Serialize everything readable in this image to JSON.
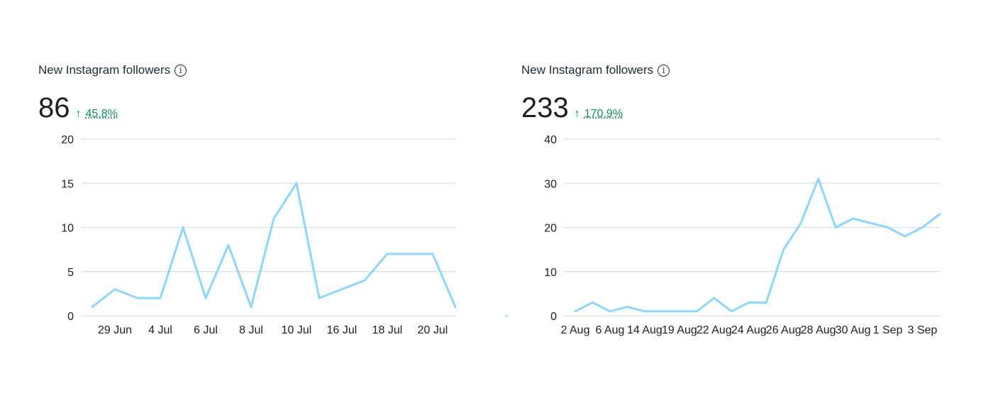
{
  "chart_data": [
    {
      "type": "line",
      "title": "New Instagram followers",
      "total": "86",
      "change": "45.8%",
      "change_direction": "up",
      "ylim": [
        0,
        20
      ],
      "yticks": [
        "0",
        "5",
        "10",
        "15",
        "20"
      ],
      "ytick_values": [
        0,
        5,
        10,
        15,
        20
      ],
      "values": [
        1,
        3,
        2,
        2,
        10,
        2,
        8,
        1,
        11,
        15,
        2,
        3,
        4,
        7,
        7,
        7,
        1
      ],
      "xtick_labels": [
        {
          "i": 1,
          "label": "29 Jun"
        },
        {
          "i": 3,
          "label": "4 Jul"
        },
        {
          "i": 5,
          "label": "6 Jul"
        },
        {
          "i": 7,
          "label": "8 Jul"
        },
        {
          "i": 9,
          "label": "10 Jul"
        },
        {
          "i": 11,
          "label": "16 Jul"
        },
        {
          "i": 13,
          "label": "18 Jul"
        },
        {
          "i": 15,
          "label": "20 Jul"
        }
      ],
      "color": "#8fd6ff",
      "grid": true
    },
    {
      "type": "line",
      "title": "New Instagram followers",
      "total": "233",
      "change": "170.9%",
      "change_direction": "up",
      "ylim": [
        0,
        40
      ],
      "yticks": [
        "0",
        "10",
        "20",
        "30",
        "40"
      ],
      "ytick_values": [
        0,
        10,
        20,
        30,
        40
      ],
      "values": [
        1,
        3,
        1,
        2,
        1,
        1,
        1,
        1,
        4,
        1,
        3,
        3,
        15,
        21,
        31,
        20,
        22,
        21,
        20,
        18,
        20,
        23
      ],
      "xtick_labels": [
        {
          "i": 0,
          "label": "2 Aug"
        },
        {
          "i": 2,
          "label": "6 Aug"
        },
        {
          "i": 4,
          "label": "14 Aug"
        },
        {
          "i": 6,
          "label": "19 Aug"
        },
        {
          "i": 8,
          "label": "22 Aug"
        },
        {
          "i": 10,
          "label": "24 Aug"
        },
        {
          "i": 12,
          "label": "26 Aug"
        },
        {
          "i": 14,
          "label": "28 Aug"
        },
        {
          "i": 16,
          "label": "30 Aug"
        },
        {
          "i": 18,
          "label": "1 Sep"
        },
        {
          "i": 20,
          "label": "3 Sep"
        }
      ],
      "color": "#8fd6ff",
      "grid": true
    }
  ]
}
